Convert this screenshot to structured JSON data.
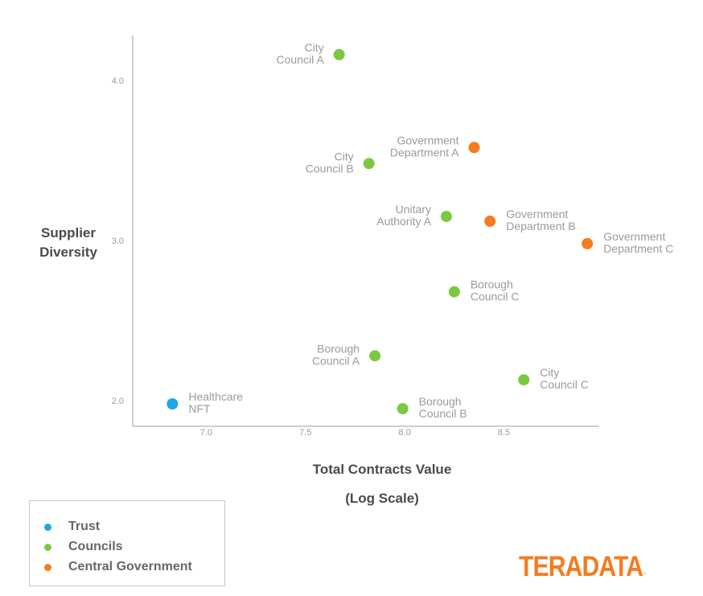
{
  "chart_data": {
    "type": "scatter",
    "xlabel": [
      "Total Contracts Value",
      "(Log Scale)"
    ],
    "ylabel": [
      "Supplier",
      "Diversity"
    ],
    "x_ticks": [
      "7.0",
      "7.5",
      "8.0",
      "8.5"
    ],
    "y_ticks": [
      "2.0",
      "3.0",
      "4.0"
    ],
    "xlim": [
      6.63,
      8.98
    ],
    "ylim": [
      1.84,
      4.28
    ],
    "grid": false,
    "legend_position": "bottom-left",
    "series": [
      {
        "name": "Trust",
        "color": "#1ea7e8",
        "points": [
          {
            "label": [
              "Healthcare",
              "NFT"
            ],
            "x": 6.83,
            "y": 1.98,
            "label_side": "right"
          }
        ]
      },
      {
        "name": "Councils",
        "color": "#7ac943",
        "points": [
          {
            "label": [
              "City",
              "Council A"
            ],
            "x": 7.67,
            "y": 4.16,
            "label_side": "left"
          },
          {
            "label": [
              "City",
              "Council B"
            ],
            "x": 7.82,
            "y": 3.48,
            "label_side": "left"
          },
          {
            "label": [
              "Unitary",
              "Authority A"
            ],
            "x": 8.21,
            "y": 3.15,
            "label_side": "left"
          },
          {
            "label": [
              "Borough",
              "Council C"
            ],
            "x": 8.25,
            "y": 2.68,
            "label_side": "right"
          },
          {
            "label": [
              "Borough",
              "Council A"
            ],
            "x": 7.85,
            "y": 2.28,
            "label_side": "left"
          },
          {
            "label": [
              "City",
              "Council C"
            ],
            "x": 8.6,
            "y": 2.13,
            "label_side": "right"
          },
          {
            "label": [
              "Borough",
              "Council B"
            ],
            "x": 7.99,
            "y": 1.95,
            "label_side": "right"
          }
        ]
      },
      {
        "name": "Central Government",
        "color": "#f47b20",
        "points": [
          {
            "label": [
              "Government",
              "Department A"
            ],
            "x": 8.35,
            "y": 3.58,
            "label_side": "left"
          },
          {
            "label": [
              "Government",
              "Department B"
            ],
            "x": 8.43,
            "y": 3.12,
            "label_side": "right"
          },
          {
            "label": [
              "Government",
              "Department C"
            ],
            "x": 8.92,
            "y": 2.98,
            "label_side": "right"
          }
        ]
      }
    ]
  },
  "legend": [
    {
      "label": "Trust",
      "color": "#1ea7e8"
    },
    {
      "label": "Councils",
      "color": "#7ac943"
    },
    {
      "label": "Central Government",
      "color": "#f47b20"
    }
  ],
  "logo": {
    "text": "TERADATA",
    "mark": "."
  }
}
